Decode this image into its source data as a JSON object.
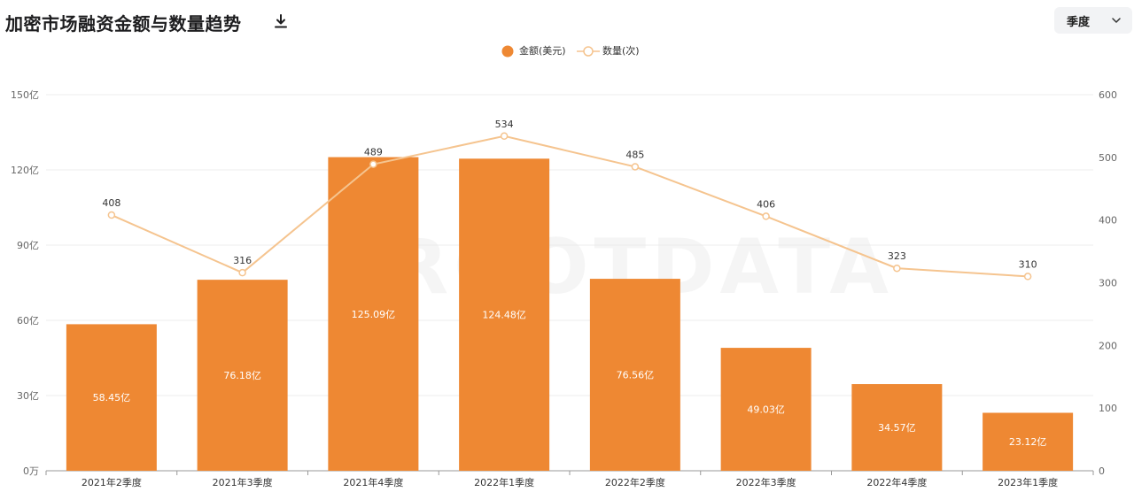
{
  "header": {
    "title": "加密市场融资金额与数量趋势",
    "download_icon": "download-icon",
    "period_select": {
      "value": "季度",
      "icon": "chevron-down-icon"
    }
  },
  "watermark": "ROOTDATA",
  "colors": {
    "bar": "#ee8833",
    "line": "#f5c48f",
    "grid": "#ececec",
    "axis_text": "#666666"
  },
  "chart_data": {
    "type": "bar",
    "categories": [
      "2021年2季度",
      "2021年3季度",
      "2021年4季度",
      "2022年1季度",
      "2022年2季度",
      "2022年3季度",
      "2022年4季度",
      "2023年1季度"
    ],
    "series": [
      {
        "name": "金额(美元)",
        "type": "bar",
        "axis": "left",
        "values": [
          58.45,
          76.18,
          125.09,
          124.48,
          76.56,
          49.03,
          34.57,
          23.12
        ],
        "labels": [
          "58.45亿",
          "76.18亿",
          "125.09亿",
          "124.48亿",
          "76.56亿",
          "49.03亿",
          "34.57亿",
          "23.12亿"
        ]
      },
      {
        "name": "数量(次)",
        "type": "line",
        "axis": "right",
        "values": [
          408,
          316,
          489,
          534,
          485,
          406,
          323,
          310
        ],
        "labels": [
          "408",
          "316",
          "489",
          "534",
          "485",
          "406",
          "323",
          "310"
        ]
      }
    ],
    "y_left": {
      "ylim": [
        0,
        150
      ],
      "ticks": [
        0,
        30,
        60,
        90,
        120,
        150
      ],
      "tick_labels": [
        "0万",
        "30亿",
        "60亿",
        "90亿",
        "120亿",
        "150亿"
      ]
    },
    "y_right": {
      "ylim": [
        0,
        600
      ],
      "ticks": [
        0,
        100,
        200,
        300,
        400,
        500,
        600
      ],
      "tick_labels": [
        "0",
        "100",
        "200",
        "300",
        "400",
        "500",
        "600"
      ]
    },
    "grid": true,
    "legend_position": "top-center"
  }
}
